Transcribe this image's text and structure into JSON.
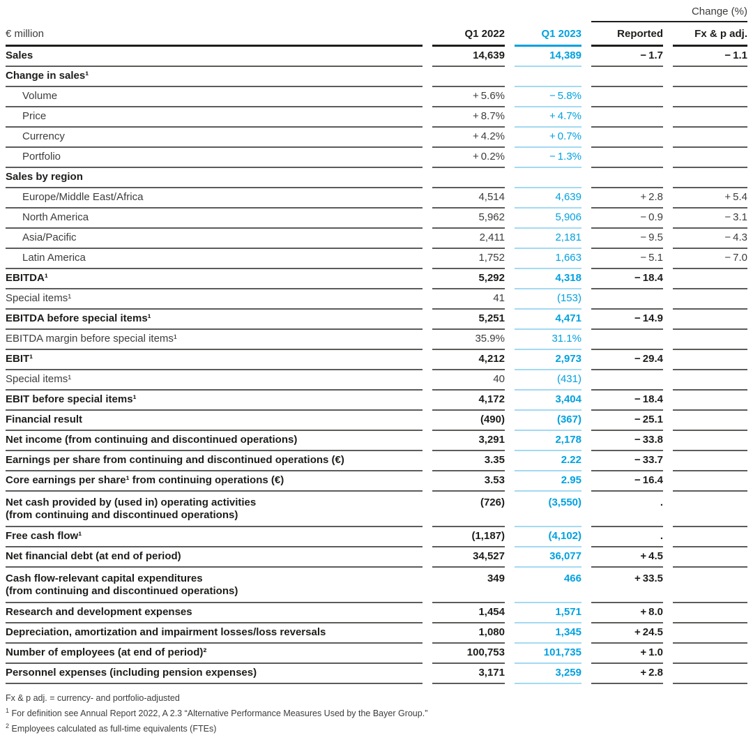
{
  "header": {
    "change_label": "Change (%)"
  },
  "columns": {
    "label": "€ million",
    "q1_2022": "Q1 2022",
    "q1_2023": "Q1 2023",
    "reported": "Reported",
    "fx": "Fx & p adj."
  },
  "colors": {
    "accent_blue": "#00a1e0",
    "light_blue_rule": "#a3d9f3",
    "gray_rule": "#5b5b5a",
    "dark_rule": "#1d1d1b"
  },
  "table": {
    "rows": [
      {
        "label": "Sales",
        "bold": true,
        "q1_2022": "14,639",
        "q1_2023": "14,389",
        "reported": "− 1.7",
        "fx": "− 1.1"
      },
      {
        "label": "Change in sales¹",
        "bold": true
      },
      {
        "label": "Volume",
        "indent": true,
        "q1_2022": "+ 5.6%",
        "q1_2023": "− 5.8%"
      },
      {
        "label": "Price",
        "indent": true,
        "q1_2022": "+ 8.7%",
        "q1_2023": "+ 4.7%"
      },
      {
        "label": "Currency",
        "indent": true,
        "q1_2022": "+ 4.2%",
        "q1_2023": "+ 0.7%"
      },
      {
        "label": "Portfolio",
        "indent": true,
        "q1_2022": "+ 0.2%",
        "q1_2023": "− 1.3%"
      },
      {
        "label": "Sales by region",
        "bold": true
      },
      {
        "label": "Europe/Middle East/Africa",
        "indent": true,
        "q1_2022": "4,514",
        "q1_2023": "4,639",
        "reported": "+ 2.8",
        "fx": "+ 5.4"
      },
      {
        "label": "North America",
        "indent": true,
        "q1_2022": "5,962",
        "q1_2023": "5,906",
        "reported": "− 0.9",
        "fx": "− 3.1"
      },
      {
        "label": "Asia/Pacific",
        "indent": true,
        "q1_2022": "2,411",
        "q1_2023": "2,181",
        "reported": "− 9.5",
        "fx": "− 4.3"
      },
      {
        "label": "Latin America",
        "indent": true,
        "q1_2022": "1,752",
        "q1_2023": "1,663",
        "reported": "− 5.1",
        "fx": "− 7.0"
      },
      {
        "label": "EBITDA¹",
        "bold": true,
        "q1_2022": "5,292",
        "q1_2023": "4,318",
        "reported": "− 18.4"
      },
      {
        "label": "Special items¹",
        "q1_2022": "41",
        "q1_2023": "(153)"
      },
      {
        "label": "EBITDA before special items¹",
        "bold": true,
        "q1_2022": "5,251",
        "q1_2023": "4,471",
        "reported": "− 14.9"
      },
      {
        "label": "EBITDA margin before special items¹",
        "q1_2022": "35.9%",
        "q1_2023": "31.1%"
      },
      {
        "label": "EBIT¹",
        "bold": true,
        "q1_2022": "4,212",
        "q1_2023": "2,973",
        "reported": "− 29.4"
      },
      {
        "label": "Special items¹",
        "q1_2022": "40",
        "q1_2023": "(431)"
      },
      {
        "label": "EBIT before special items¹",
        "bold": true,
        "q1_2022": "4,172",
        "q1_2023": "3,404",
        "reported": "− 18.4"
      },
      {
        "label": "Financial result",
        "bold": true,
        "q1_2022": "(490)",
        "q1_2023": "(367)",
        "reported": "− 25.1"
      },
      {
        "label": "Net income (from continuing and discontinued operations)",
        "bold": true,
        "q1_2022": "3,291",
        "q1_2023": "2,178",
        "reported": "− 33.8"
      },
      {
        "label": "Earnings per share from continuing and discontinued operations (€)",
        "bold": true,
        "q1_2022": "3.35",
        "q1_2023": "2.22",
        "reported": "− 33.7"
      },
      {
        "label": "Core earnings per share¹ from continuing operations (€)",
        "bold": true,
        "q1_2022": "3.53",
        "q1_2023": "2.95",
        "reported": "− 16.4"
      },
      {
        "label": "Net cash provided by (used in) operating activities",
        "label2": "(from continuing and discontinued operations)",
        "bold": true,
        "q1_2022": "(726)",
        "q1_2023": "(3,550)",
        "reported": "."
      },
      {
        "label": "Free cash flow¹",
        "bold": true,
        "q1_2022": "(1,187)",
        "q1_2023": "(4,102)",
        "reported": "."
      },
      {
        "label": "Net financial debt (at end of period)",
        "bold": true,
        "q1_2022": "34,527",
        "q1_2023": "36,077",
        "reported": "+ 4.5"
      },
      {
        "label": "Cash flow-relevant capital expenditures",
        "label2": "(from continuing and discontinued operations)",
        "bold": true,
        "q1_2022": "349",
        "q1_2023": "466",
        "reported": "+ 33.5"
      },
      {
        "label": "Research and development expenses",
        "bold": true,
        "q1_2022": "1,454",
        "q1_2023": "1,571",
        "reported": "+ 8.0"
      },
      {
        "label": "Depreciation, amortization and impairment losses/loss reversals",
        "bold": true,
        "q1_2022": "1,080",
        "q1_2023": "1,345",
        "reported": "+ 24.5"
      },
      {
        "label": "Number of employees (at end of period)²",
        "bold": true,
        "q1_2022": "100,753",
        "q1_2023": "101,735",
        "reported": "+ 1.0"
      },
      {
        "label": "Personnel expenses (including pension expenses)",
        "bold": true,
        "q1_2022": "3,171",
        "q1_2023": "3,259",
        "reported": "+ 2.8"
      }
    ]
  },
  "footnotes": [
    {
      "marker": "",
      "text": "Fx & p adj. = currency- and portfolio-adjusted"
    },
    {
      "marker": "1",
      "text": "For definition see Annual Report 2022, A 2.3 “Alternative Performance Measures Used by the Bayer Group.”"
    },
    {
      "marker": "2",
      "text": "Employees calculated as full-time equivalents (FTEs)"
    }
  ]
}
